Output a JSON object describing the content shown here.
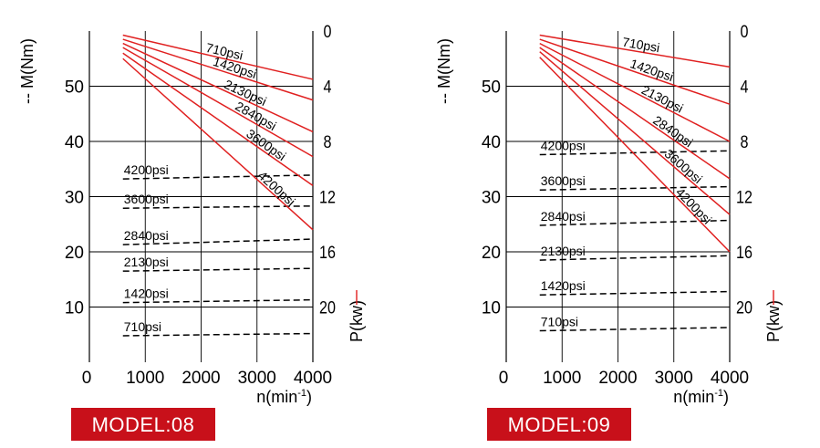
{
  "chart_data": [
    {
      "type": "line",
      "model_label": "MODEL:08",
      "xlabel": "n(min",
      "xlabel_sup": "-1",
      "xlabel_close": ")",
      "ylabel_left": "-- M(Nm)",
      "ylabel_right": "P(kw)",
      "xlim": [
        0,
        4000
      ],
      "xticks": [
        "0",
        "1000",
        "2000",
        "3000",
        "4000"
      ],
      "ylim": [
        0,
        60
      ],
      "yticks": [
        "10",
        "20",
        "30",
        "40",
        "50"
      ],
      "right_ylim": [
        0,
        24
      ],
      "right_yticks": [
        "0",
        "4",
        "8",
        "12",
        "16",
        "20"
      ],
      "torque_series": [
        {
          "name": "710psi",
          "x": [
            600,
            4000
          ],
          "y": [
            4.8,
            5.2
          ]
        },
        {
          "name": "1420psi",
          "x": [
            600,
            4000
          ],
          "y": [
            10.8,
            11.3
          ]
        },
        {
          "name": "2130psi",
          "x": [
            600,
            4000
          ],
          "y": [
            16.5,
            17.0
          ]
        },
        {
          "name": "2840psi",
          "x": [
            600,
            4000
          ],
          "y": [
            21.3,
            22.3
          ]
        },
        {
          "name": "3600psi",
          "x": [
            600,
            4000
          ],
          "y": [
            27.9,
            28.3
          ]
        },
        {
          "name": "4200psi",
          "x": [
            600,
            4000
          ],
          "y": [
            33.2,
            33.9
          ]
        }
      ],
      "power_series": [
        {
          "name": "710psi",
          "x": [
            600,
            4000
          ],
          "y": [
            0.3,
            3.5
          ]
        },
        {
          "name": "1420psi",
          "x": [
            600,
            4000
          ],
          "y": [
            0.6,
            5.0
          ]
        },
        {
          "name": "2130psi",
          "x": [
            600,
            4000
          ],
          "y": [
            0.9,
            7.3
          ]
        },
        {
          "name": "2840psi",
          "x": [
            600,
            4000
          ],
          "y": [
            1.2,
            9.1
          ]
        },
        {
          "name": "3600psi",
          "x": [
            600,
            4000
          ],
          "y": [
            1.6,
            11.2
          ]
        },
        {
          "name": "4200psi",
          "x": [
            600,
            4000
          ],
          "y": [
            2.0,
            14.4
          ]
        }
      ]
    },
    {
      "type": "line",
      "model_label": "MODEL:09",
      "xlabel": "n(min",
      "xlabel_sup": "-1",
      "xlabel_close": ")",
      "ylabel_left": "-- M(Nm)",
      "ylabel_right": "P(kw)",
      "xlim": [
        0,
        4000
      ],
      "xticks": [
        "0",
        "1000",
        "2000",
        "3000",
        "4000"
      ],
      "ylim": [
        0,
        60
      ],
      "yticks": [
        "10",
        "20",
        "30",
        "40",
        "50"
      ],
      "right_ylim": [
        0,
        24
      ],
      "right_yticks": [
        "0",
        "4",
        "8",
        "12",
        "16",
        "20"
      ],
      "torque_series": [
        {
          "name": "710psi",
          "x": [
            600,
            4000
          ],
          "y": [
            5.7,
            6.3
          ]
        },
        {
          "name": "1420psi",
          "x": [
            600,
            4000
          ],
          "y": [
            12.2,
            12.8
          ]
        },
        {
          "name": "2130psi",
          "x": [
            600,
            4000
          ],
          "y": [
            18.5,
            19.3
          ]
        },
        {
          "name": "2840psi",
          "x": [
            600,
            4000
          ],
          "y": [
            24.8,
            25.7
          ]
        },
        {
          "name": "3600psi",
          "x": [
            600,
            4000
          ],
          "y": [
            31.2,
            31.8
          ]
        },
        {
          "name": "4200psi",
          "x": [
            600,
            4000
          ],
          "y": [
            37.6,
            38.3
          ]
        }
      ],
      "power_series": [
        {
          "name": "710psi",
          "x": [
            600,
            4000
          ],
          "y": [
            0.3,
            2.6
          ]
        },
        {
          "name": "1420psi",
          "x": [
            600,
            4000
          ],
          "y": [
            0.6,
            5.3
          ]
        },
        {
          "name": "2130psi",
          "x": [
            600,
            4000
          ],
          "y": [
            0.9,
            8.0
          ]
        },
        {
          "name": "2840psi",
          "x": [
            600,
            4000
          ],
          "y": [
            1.2,
            10.7
          ]
        },
        {
          "name": "3600psi",
          "x": [
            600,
            4000
          ],
          "y": [
            1.5,
            13.3
          ]
        },
        {
          "name": "4200psi",
          "x": [
            600,
            4000
          ],
          "y": [
            1.9,
            16.0
          ]
        }
      ]
    }
  ]
}
